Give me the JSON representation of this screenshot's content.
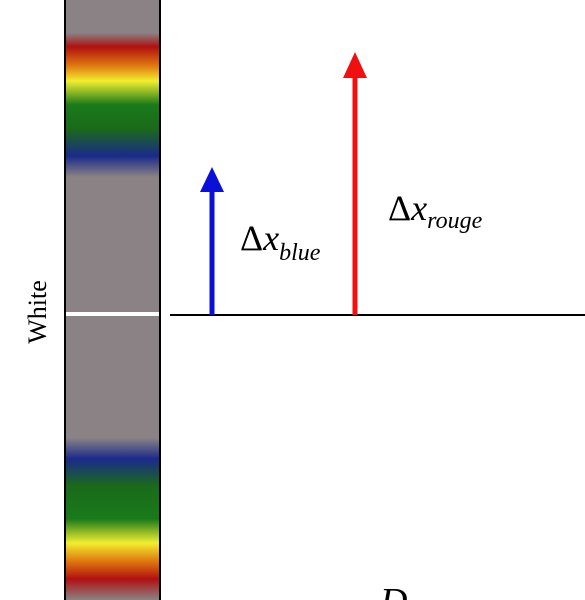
{
  "strip_label": "White",
  "arrows": [
    {
      "delta": "Δ",
      "variable": "x",
      "subscript": "blue"
    },
    {
      "delta": "Δ",
      "variable": "x",
      "subscript": "rouge"
    }
  ],
  "distance_label": "D"
}
